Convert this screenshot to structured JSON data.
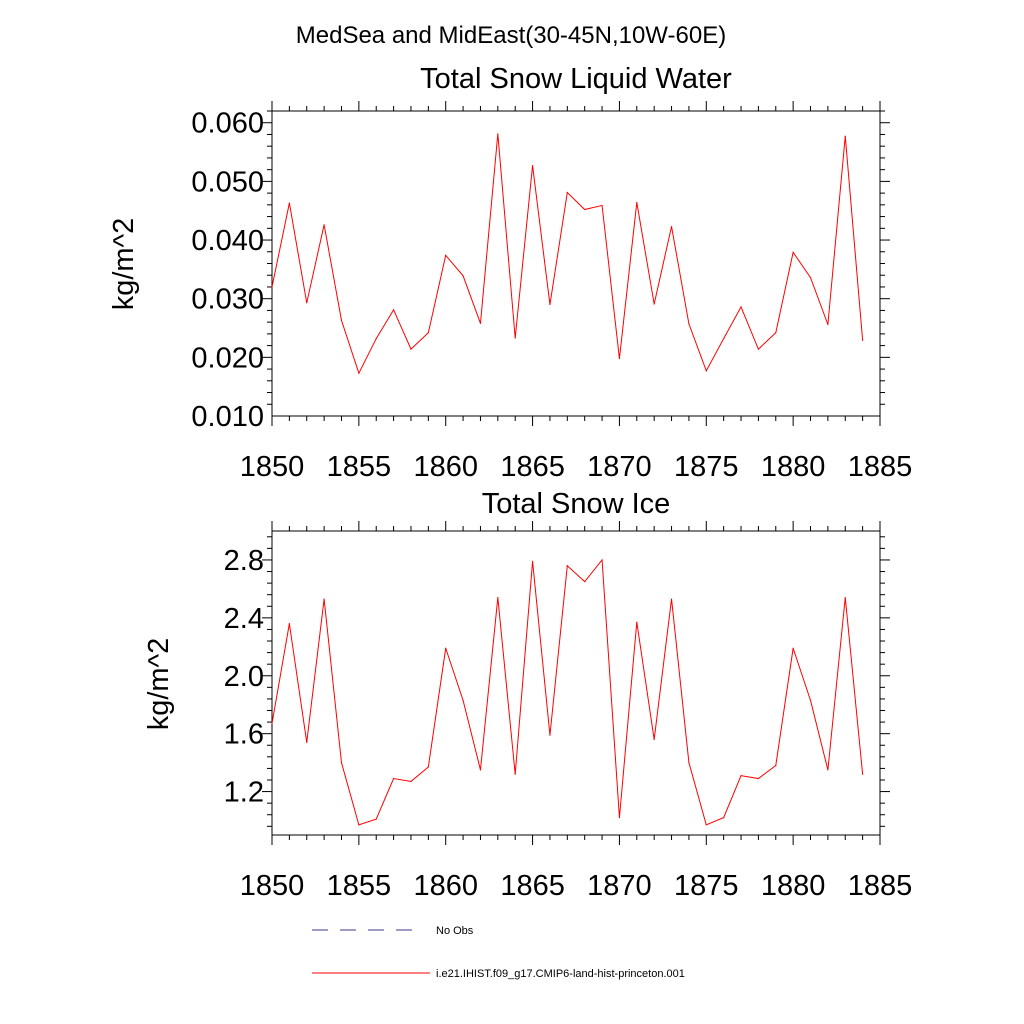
{
  "suptitle": "MedSea and MidEast(30-45N,10W-60E)",
  "chart_data": [
    {
      "type": "line",
      "title": "Total Snow Liquid Water",
      "xlabel": "",
      "ylabel": "kg/m^2",
      "xlim": [
        1850,
        1885
      ],
      "ylim": [
        0.01,
        0.062
      ],
      "x_ticks": [
        "1850",
        "1855",
        "1860",
        "1865",
        "1870",
        "1875",
        "1880",
        "1885"
      ],
      "y_ticks": [
        "0.010",
        "0.020",
        "0.030",
        "0.040",
        "0.050",
        "0.060"
      ],
      "x": [
        1850,
        1851,
        1852,
        1853,
        1854,
        1855,
        1856,
        1857,
        1858,
        1859,
        1860,
        1861,
        1862,
        1863,
        1864,
        1865,
        1866,
        1867,
        1868,
        1869,
        1870,
        1871,
        1872,
        1873,
        1874,
        1875,
        1876,
        1877,
        1878,
        1879,
        1880,
        1881,
        1882,
        1883,
        1884
      ],
      "series": [
        {
          "name": "i.e21.IHIST.f09_g17.CMIP6-land-hist-princeton.001",
          "color": "#ff0000",
          "values": [
            0.032,
            0.0463,
            0.0293,
            0.0426,
            0.0263,
            0.0173,
            0.0232,
            0.0281,
            0.0214,
            0.0242,
            0.0374,
            0.0339,
            0.0258,
            0.0581,
            0.0233,
            0.0527,
            0.029,
            0.0481,
            0.0452,
            0.0459,
            0.0198,
            0.0464,
            0.0291,
            0.0423,
            0.0257,
            0.0177,
            0.0232,
            0.0286,
            0.0214,
            0.0242,
            0.0379,
            0.0336,
            0.0256,
            0.0577,
            0.0229
          ]
        }
      ],
      "grid": false
    },
    {
      "type": "line",
      "title": "Total Snow Ice",
      "xlabel": "",
      "ylabel": "kg/m^2",
      "xlim": [
        1850,
        1885
      ],
      "ylim": [
        0.9,
        3.0
      ],
      "x_ticks": [
        "1850",
        "1855",
        "1860",
        "1865",
        "1870",
        "1875",
        "1880",
        "1885"
      ],
      "y_ticks": [
        "1.2",
        "1.6",
        "2.0",
        "2.4",
        "2.8"
      ],
      "x": [
        1850,
        1851,
        1852,
        1853,
        1854,
        1855,
        1856,
        1857,
        1858,
        1859,
        1860,
        1861,
        1862,
        1863,
        1864,
        1865,
        1866,
        1867,
        1868,
        1869,
        1870,
        1871,
        1872,
        1873,
        1874,
        1875,
        1876,
        1877,
        1878,
        1879,
        1880,
        1881,
        1882,
        1883,
        1884
      ],
      "series": [
        {
          "name": "i.e21.IHIST.f09_g17.CMIP6-land-hist-princeton.001",
          "color": "#ff0000",
          "values": [
            1.67,
            2.36,
            1.54,
            2.53,
            1.4,
            0.97,
            1.01,
            1.29,
            1.27,
            1.37,
            2.19,
            1.83,
            1.35,
            2.54,
            1.32,
            2.79,
            1.59,
            2.76,
            2.65,
            2.8,
            1.02,
            2.37,
            1.56,
            2.53,
            1.4,
            0.97,
            1.02,
            1.31,
            1.29,
            1.38,
            2.19,
            1.83,
            1.35,
            2.54,
            1.32
          ]
        }
      ],
      "grid": false
    }
  ],
  "legend": {
    "items": [
      {
        "label": "No Obs",
        "color": "#3a3a8c",
        "style": "dashed"
      },
      {
        "label": "i.e21.IHIST.f09_g17.CMIP6-land-hist-princeton.001",
        "color": "#ff0000",
        "style": "solid"
      }
    ]
  }
}
